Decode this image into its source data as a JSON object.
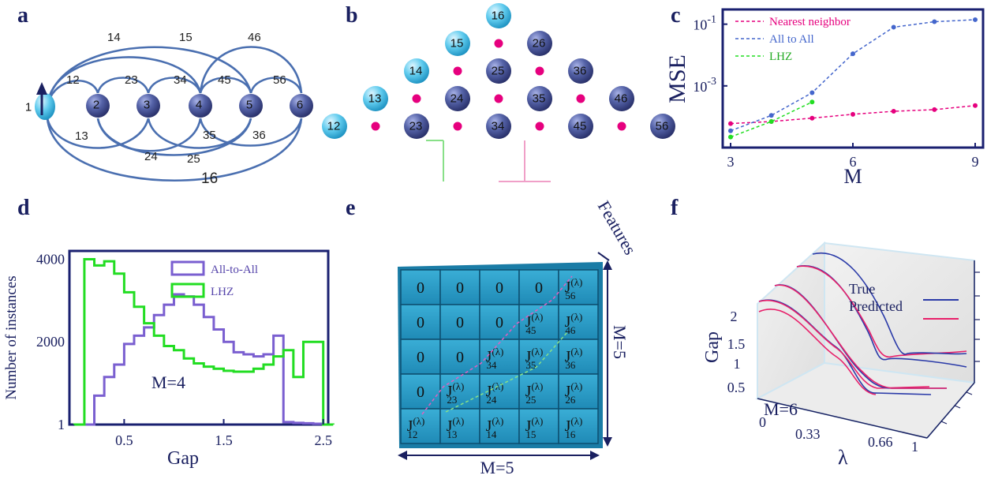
{
  "panel_labels": [
    "a",
    "b",
    "c",
    "d",
    "e",
    "f"
  ],
  "colors": {
    "node_dark": "#3f4a8c",
    "node_light": "#4fc3e8",
    "arc": "#4a6fb0",
    "magenta": "#e6007e",
    "blue": "#4466cc",
    "green": "#22dd22",
    "axis": "#1a2070",
    "purple": "#7a5fd0",
    "grid_cell": "#2a9bc4"
  },
  "panel_a": {
    "nodes": [
      "1",
      "2",
      "3",
      "4",
      "5",
      "6"
    ],
    "arc_labels_top": [
      "14",
      "15",
      "46",
      "12",
      "23",
      "34",
      "45",
      "56"
    ],
    "arc_labels_bottom": [
      "13",
      "24",
      "25",
      "35",
      "36",
      "16"
    ]
  },
  "panel_b": {
    "rows": [
      [
        "16"
      ],
      [
        "15",
        "26"
      ],
      [
        "14",
        "25",
        "36"
      ],
      [
        "13",
        "24",
        "35",
        "46"
      ],
      [
        "12",
        "23",
        "34",
        "45",
        "56"
      ]
    ]
  },
  "chart_data": [
    {
      "type": "line",
      "panel": "c",
      "ylabel": "MSE",
      "xlabel": "M",
      "yscale": "log",
      "xlim": [
        3,
        9
      ],
      "ylim": [
        1e-05,
        0.3
      ],
      "xticks": [
        "3",
        "6",
        "9"
      ],
      "yticks": [
        {
          "label": "10",
          "exp": "-1",
          "value": 0.1
        },
        {
          "label": "10",
          "exp": "-3",
          "value": 0.001
        }
      ],
      "legend_position": "top-left",
      "series": [
        {
          "name": "Nearest neighbor",
          "color": "#e6007e",
          "x": [
            3,
            4,
            5,
            6,
            7,
            8,
            9
          ],
          "y": [
            6e-05,
            7e-05,
            9e-05,
            0.00012,
            0.00015,
            0.00017,
            0.00023
          ]
        },
        {
          "name": "All to All",
          "color": "#4466cc",
          "x": [
            3,
            4,
            5,
            6,
            7,
            8,
            9
          ],
          "y": [
            3.5e-05,
            0.00011,
            0.0006,
            0.011,
            0.08,
            0.12,
            0.14
          ]
        },
        {
          "name": "LHZ",
          "color": "#22dd22",
          "x": [
            3,
            4,
            5
          ],
          "y": [
            2.2e-05,
            7e-05,
            0.0003
          ]
        }
      ]
    },
    {
      "type": "histogram",
      "panel": "d",
      "xlabel": "Gap",
      "ylabel": "Number of instances",
      "xlim": [
        0,
        2.5
      ],
      "ylim": [
        1,
        4000
      ],
      "xticks": [
        "0.5",
        "1.5",
        "2.5"
      ],
      "yticks": [
        "1",
        "2000",
        "4000"
      ],
      "annotation": "M=4",
      "legend_position": "top-right",
      "bin_width": 0.1,
      "series": [
        {
          "name": "All-to-All",
          "color": "#7a5fd0",
          "start": 0.1,
          "values": [
            1,
            700,
            1150,
            1450,
            1950,
            2150,
            2350,
            2650,
            2900,
            3150,
            3100,
            2900,
            2600,
            2300,
            2000,
            1750,
            1700,
            1650,
            1700,
            2150,
            60,
            40,
            30,
            20
          ]
        },
        {
          "name": "LHZ",
          "color": "#22dd22",
          "start": 0.0,
          "values": [
            1,
            4000,
            3850,
            3950,
            3650,
            3200,
            2850,
            2450,
            2150,
            1900,
            1800,
            1600,
            1480,
            1400,
            1350,
            1300,
            1280,
            1280,
            1350,
            1450,
            1650,
            1800,
            1150,
            2000,
            2000,
            1
          ]
        }
      ]
    },
    {
      "type": "line3d",
      "panel": "f",
      "xlabel": "λ",
      "zlabel": "Gap",
      "xticks": [
        "0",
        "0.33",
        "0.66",
        "1"
      ],
      "zticks": [
        "0.5",
        "1",
        "1.5",
        "2"
      ],
      "annotation": "M=6",
      "legend_position": "top-right",
      "series": [
        {
          "name": "True",
          "color": "#2a3aa8"
        },
        {
          "name": "Predicted",
          "color": "#e8206a"
        }
      ]
    }
  ],
  "panel_c_legend": [
    "Nearest neighbor",
    "All to All",
    "LHZ"
  ],
  "panel_d_legend": [
    "All-to-All",
    "LHZ"
  ],
  "panel_e": {
    "features_label": "Features",
    "m_right": "M=5",
    "m_bottom": "M=5",
    "sup": "(λ)",
    "rows": [
      [
        "0",
        "0",
        "0",
        "0",
        "J|56"
      ],
      [
        "0",
        "0",
        "0",
        "J|45",
        "J|46"
      ],
      [
        "0",
        "0",
        "J|34",
        "J|35",
        "J|36"
      ],
      [
        "0",
        "J|23",
        "J|24",
        "J|25",
        "J|26"
      ],
      [
        "J|12",
        "J|13",
        "J|14",
        "J|15",
        "J|16"
      ]
    ]
  },
  "panel_f_legend": [
    "True",
    "Predicted"
  ]
}
